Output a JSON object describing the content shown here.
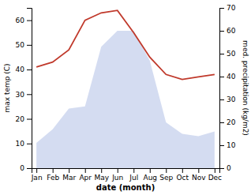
{
  "chart_data": {
    "type": "line",
    "categories": [
      "Jan",
      "Feb",
      "Mar",
      "Apr",
      "May",
      "Jun",
      "Jul",
      "Aug",
      "Sep",
      "Oct",
      "Nov",
      "Dec"
    ],
    "xlabel": "date (month)",
    "ylabel": "max temp (C)",
    "y2label": "med. precipitation (kg/m2)",
    "series": [
      {
        "type": "area",
        "axis": "y2",
        "color": "#b8c4e8",
        "values": [
          11,
          17,
          26,
          27,
          53,
          60,
          60,
          47,
          20,
          15,
          14,
          16
        ]
      },
      {
        "type": "line",
        "color": "#c0392b",
        "values": [
          41,
          43,
          48,
          60,
          63,
          64,
          55,
          45,
          38,
          36,
          37,
          38
        ]
      }
    ],
    "ylim": [
      0,
      65
    ],
    "yticks": [
      0,
      10,
      20,
      30,
      40,
      50,
      60
    ],
    "y2lim": [
      0,
      70
    ],
    "y2ticks": [
      0,
      10,
      20,
      30,
      40,
      50,
      60,
      70
    ],
    "grid": false
  }
}
